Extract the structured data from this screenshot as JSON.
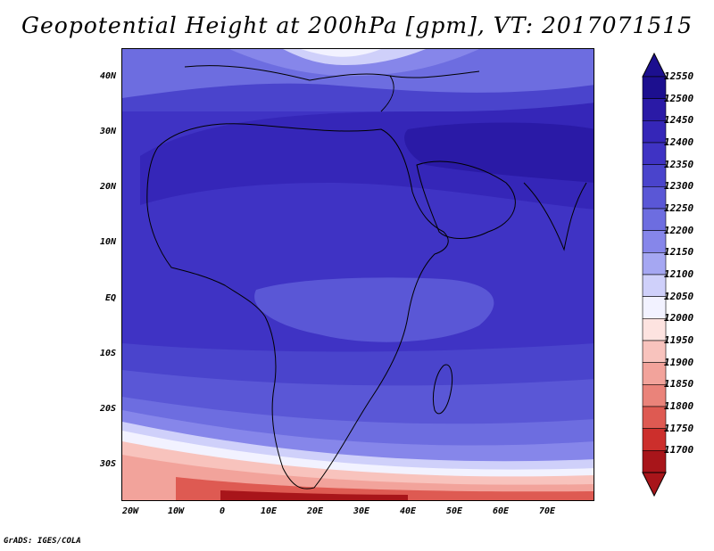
{
  "title": "Geopotential Height at 200hPa [gpm], VT: 2017071515",
  "footer": "GrADS: IGES/COLA",
  "lat_labels": [
    "40N",
    "30N",
    "20N",
    "10N",
    "EQ",
    "10S",
    "20S",
    "30S"
  ],
  "lon_labels": [
    "20W",
    "10W",
    "0",
    "10E",
    "20E",
    "30E",
    "40E",
    "50E",
    "60E",
    "70E"
  ],
  "colorbar": {
    "levels": [
      "12550",
      "12500",
      "12450",
      "12400",
      "12350",
      "12300",
      "12250",
      "12200",
      "12150",
      "12100",
      "12050",
      "12000",
      "11950",
      "11900",
      "11850",
      "11800",
      "11750",
      "11700"
    ],
    "colors": [
      "#1c0f8f",
      "#2a1aa6",
      "#3526b8",
      "#3f33c4",
      "#4a44cc",
      "#5a57d6",
      "#6d6de0",
      "#8686ea",
      "#a5a7f2",
      "#cfd0fa",
      "#f2f2ff",
      "#fde3e0",
      "#f8c3bd",
      "#f2a39b",
      "#ea837a",
      "#de5a52",
      "#cc2f2c",
      "#a8151a"
    ]
  },
  "map": {
    "lon_range": [
      -22,
      80
    ],
    "lat_range": [
      -37,
      45
    ],
    "field_description_colors": {
      "high": "#2a1aa6",
      "mid": "#3f33c4",
      "low_equatorial": "#6d6de0",
      "south_low": "#cc2f2c"
    }
  }
}
